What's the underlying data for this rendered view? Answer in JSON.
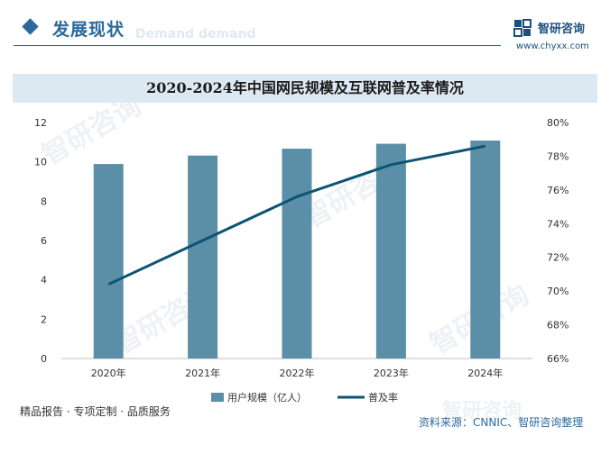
{
  "header": {
    "section_title": "发展现状",
    "section_ghost": "Demand demand"
  },
  "logo": {
    "name": "智研咨询",
    "url": "www.chyxx.com",
    "watermark": "智研咨询"
  },
  "footer": {
    "left": "精品报告 · 专项定制 · 品质服务",
    "source": "资料来源：CNNIC、智研咨询整理"
  },
  "colors": {
    "bar": "#5b8fa8",
    "line": "#0d5474",
    "accent": "#2b6a9e",
    "title_band": "#dde9f2"
  },
  "chart_data": {
    "type": "bar",
    "title": "2020-2024年中国网民规模及互联网普及率情况",
    "categories": [
      "2020年",
      "2021年",
      "2022年",
      "2023年",
      "2024年"
    ],
    "series": [
      {
        "name": "用户规模（亿人）",
        "type": "bar",
        "axis": "left",
        "values": [
          9.89,
          10.32,
          10.67,
          10.92,
          11.08
        ]
      },
      {
        "name": "普及率",
        "type": "line",
        "axis": "right",
        "values": [
          70.4,
          73.0,
          75.6,
          77.5,
          78.6
        ]
      }
    ],
    "y_left": {
      "min": 0,
      "max": 12,
      "ticks": [
        "0",
        "2",
        "4",
        "6",
        "8",
        "10",
        "12"
      ]
    },
    "y_right": {
      "min": 66,
      "max": 80,
      "ticks": [
        "66%",
        "68%",
        "70%",
        "72%",
        "74%",
        "76%",
        "78%",
        "80%"
      ]
    },
    "grid": false,
    "legend_position": "bottom"
  }
}
